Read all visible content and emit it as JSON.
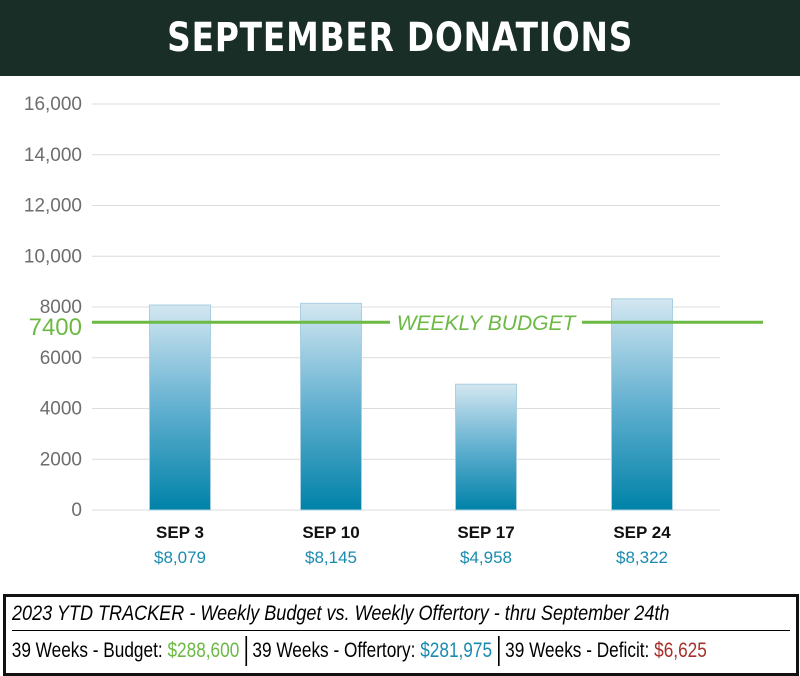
{
  "header": {
    "title": "SEPTEMBER DONATIONS"
  },
  "chart_data": {
    "type": "bar",
    "title": "SEPTEMBER DONATIONS",
    "categories": [
      "SEP 3",
      "SEP 10",
      "SEP 17",
      "SEP 24"
    ],
    "value_labels": [
      "$8,079",
      "$8,145",
      "$4,958",
      "$8,322"
    ],
    "values": [
      8079,
      8145,
      4958,
      8322
    ],
    "ylim": [
      0,
      16000
    ],
    "yticks": [
      0,
      2000,
      4000,
      6000,
      8000,
      10000,
      12000,
      14000,
      16000
    ],
    "ytick_labels": [
      "0",
      "2000",
      "4000",
      "6000",
      "8000",
      "10,000",
      "12,000",
      "14,000",
      "16,000"
    ],
    "grid": true,
    "reference_line": {
      "value": 7400,
      "value_label": "7400",
      "label": "WEEKLY BUDGET",
      "color": "#6cb944"
    },
    "colors": {
      "bar_top": "#d3e7f1",
      "bar_bottom": "#0082a8",
      "value_label": "#1a8bb0"
    }
  },
  "tracker": {
    "title": "2023 YTD TRACKER  -  Weekly Budget  vs. Weekly Offertory  - thru September 24th",
    "budget_label": "39 Weeks - Budget:",
    "budget_value": "$288,600",
    "offertory_label": "39 Weeks - Offertory:",
    "offertory_value": "$281,975",
    "deficit_label": "39 Weeks - Deficit:",
    "deficit_value": "$6,625"
  }
}
